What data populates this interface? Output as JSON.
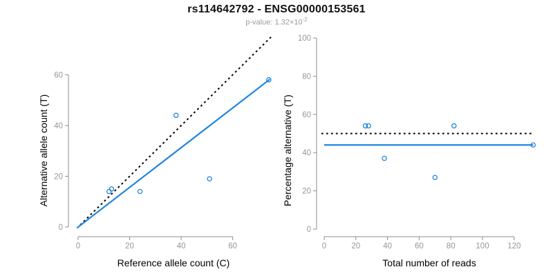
{
  "header": {
    "title": "rs114642792 - ENSG00000153561",
    "pvalue": {
      "prefix": "p-value: ",
      "mantissa": "1.32",
      "times_sign": "×",
      "base": "10",
      "exponent": "-2"
    }
  },
  "colors": {
    "accent_blue": "#1E86E0",
    "reference_line_black": "#000000",
    "axis_gray": "#8c8c8c",
    "tick_label_gray": "#969696",
    "axis_title_black": "#000000"
  },
  "chart_data": [
    {
      "type": "scatter",
      "panel": "left",
      "xlabel": "Reference allele count (C)",
      "ylabel": "Alternative allele count (T)",
      "xlim": [
        0,
        75
      ],
      "ylim": [
        0,
        75
      ],
      "xticks": [
        0,
        20,
        40,
        60
      ],
      "yticks": [
        0,
        20,
        40,
        60
      ],
      "grid": false,
      "legend": "none",
      "point_style": "open-circle",
      "points": [
        [
          12,
          14
        ],
        [
          13,
          15
        ],
        [
          24,
          14
        ],
        [
          38,
          44
        ],
        [
          51,
          19
        ],
        [
          74,
          58
        ]
      ],
      "lines": [
        {
          "name": "identity-line",
          "style": "dotted",
          "color": "#000000",
          "from": [
            0.8,
            0.8
          ],
          "to": [
            75,
            75
          ]
        },
        {
          "name": "fit-line",
          "style": "solid",
          "color": "#1E86E0",
          "from": [
            -0.5,
            -0.4
          ],
          "to": [
            74.4,
            58.2
          ]
        }
      ]
    },
    {
      "type": "scatter",
      "panel": "right",
      "xlabel": "Total number of reads",
      "ylabel": "Percentage alternative (T)",
      "xlim": [
        0,
        133
      ],
      "ylim": [
        0,
        100
      ],
      "xticks": [
        0,
        20,
        40,
        60,
        80,
        100,
        120
      ],
      "yticks": [
        0,
        20,
        40,
        60,
        80,
        100
      ],
      "grid": false,
      "legend": "none",
      "point_style": "open-circle",
      "points": [
        [
          26,
          54
        ],
        [
          28,
          54
        ],
        [
          38,
          37
        ],
        [
          70,
          27
        ],
        [
          82,
          54
        ],
        [
          132,
          44
        ]
      ],
      "lines": [
        {
          "name": "fifty-percent-line",
          "style": "dotted",
          "color": "#000000",
          "from": [
            -1.8,
            50
          ],
          "to": [
            131.5,
            50
          ]
        },
        {
          "name": "mean-percentage-line",
          "style": "solid",
          "color": "#1E86E0",
          "from": [
            0,
            44
          ],
          "to": [
            132,
            44
          ]
        }
      ]
    }
  ]
}
